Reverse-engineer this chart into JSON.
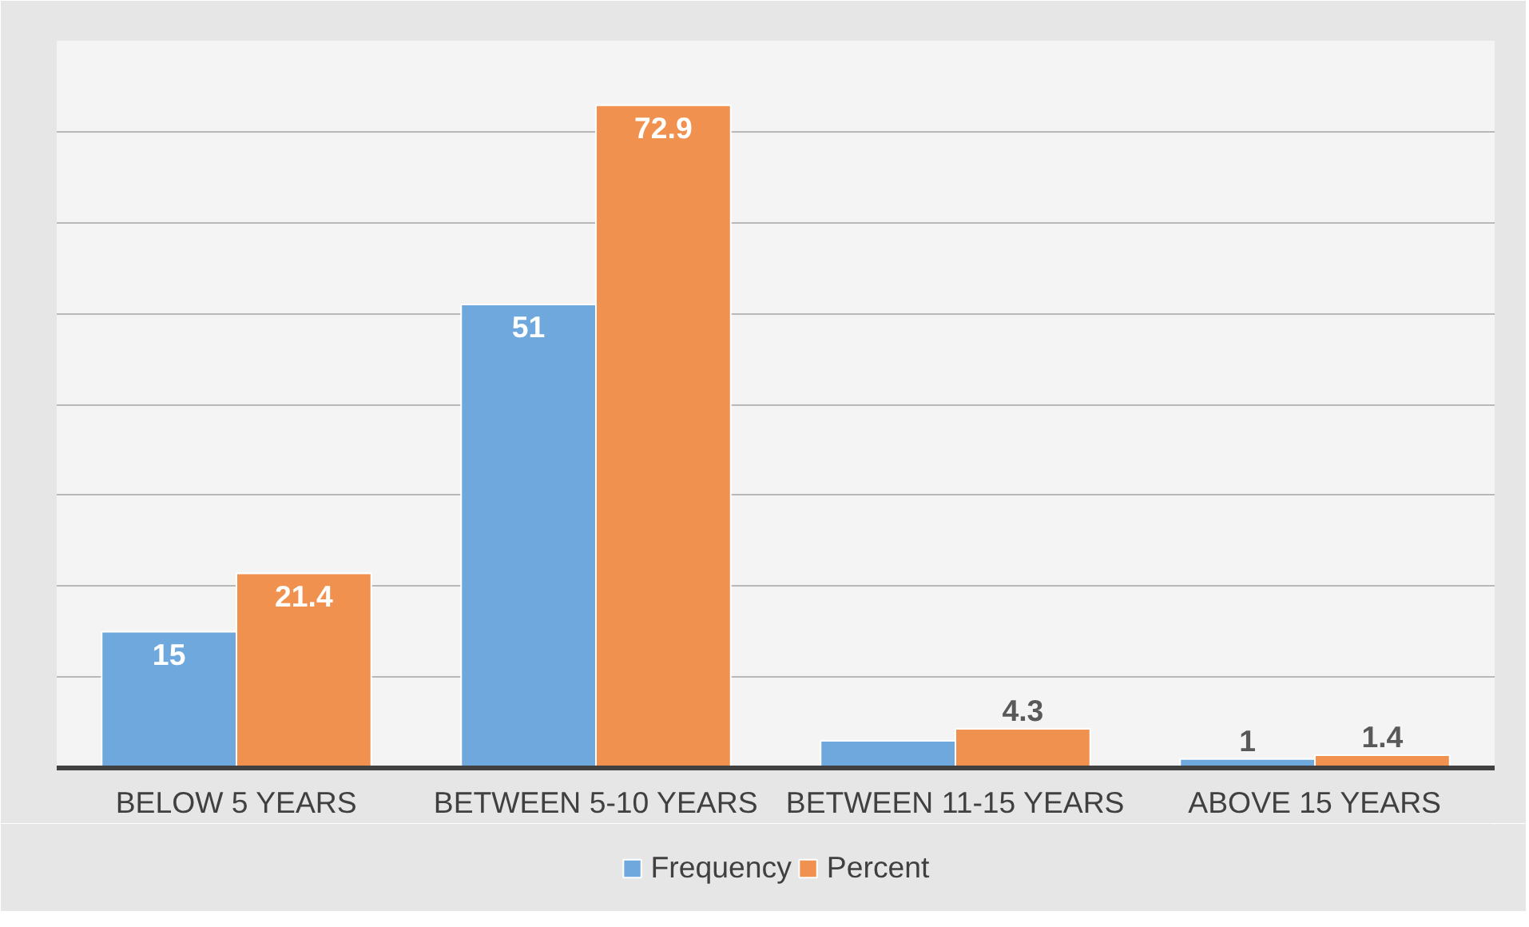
{
  "chart_data": {
    "type": "bar",
    "categories": [
      "BELOW 5 YEARS",
      "BETWEEN 5-10 YEARS",
      "BETWEEN 11-15 YEARS",
      "ABOVE 15 YEARS"
    ],
    "series": [
      {
        "name": "Frequency",
        "color": "#6fa8dc",
        "values": [
          15,
          51,
          3,
          1
        ],
        "value_labels": [
          "15",
          "51",
          null,
          "1"
        ]
      },
      {
        "name": "Percent",
        "color": "#f0914f",
        "values": [
          21.4,
          72.9,
          4.3,
          1.4
        ],
        "value_labels": [
          "21.4",
          "72.9",
          "4.3",
          "1.4"
        ]
      }
    ],
    "ylim": [
      0,
      80
    ],
    "yticks": [
      {
        "value": 0,
        "label": null
      },
      {
        "value": 10,
        "label": null
      },
      {
        "value": 20,
        "label": null
      },
      {
        "value": 30,
        "label": null
      },
      {
        "value": 40,
        "label": null
      },
      {
        "value": 50,
        "label": null
      },
      {
        "value": 60,
        "label": null
      },
      {
        "value": 70,
        "label": null
      },
      {
        "value": 80,
        "label": null
      }
    ],
    "tick_labels": "x",
    "grid": "y",
    "legend": "bottom"
  }
}
